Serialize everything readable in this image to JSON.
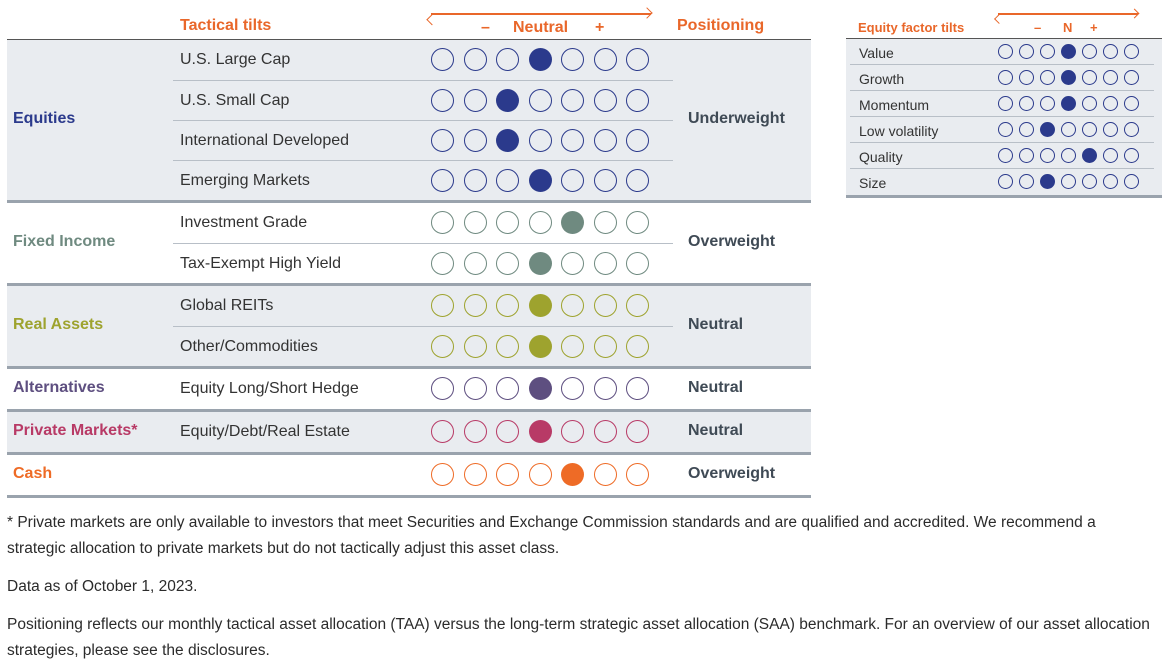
{
  "header": {
    "tactical_tilts": "Tactical tilts",
    "minus": "–",
    "neutral": "Neutral",
    "plus": "+",
    "positioning": "Positioning"
  },
  "colors": {
    "equities": "#2b3a8c",
    "fixed_income": "#6f8a80",
    "real_assets": "#9ea32e",
    "alternatives": "#5e4f80",
    "private_markets": "#b83a66",
    "cash": "#ee6b26"
  },
  "groups": [
    {
      "name": "Equities",
      "positioning": "Underweight",
      "color": "#2b3a8c",
      "rows": [
        {
          "label": "U.S. Large Cap",
          "active": 3
        },
        {
          "label": "U.S. Small Cap",
          "active": 2
        },
        {
          "label": "International Developed",
          "active": 2
        },
        {
          "label": "Emerging Markets",
          "active": 3
        }
      ]
    },
    {
      "name": "Fixed Income",
      "positioning": "Overweight",
      "color": "#6f8a80",
      "rows": [
        {
          "label": "Investment Grade",
          "active": 4
        },
        {
          "label": "Tax-Exempt High Yield",
          "active": 3
        }
      ]
    },
    {
      "name": "Real Assets",
      "positioning": "Neutral",
      "color": "#9ea32e",
      "rows": [
        {
          "label": "Global REITs",
          "active": 3
        },
        {
          "label": "Other/Commodities",
          "active": 3
        }
      ]
    },
    {
      "name": "Alternatives",
      "positioning": "Neutral",
      "color": "#5e4f80",
      "rows": [
        {
          "label": "Equity Long/Short Hedge",
          "active": 3
        }
      ]
    },
    {
      "name": "Private Markets*",
      "positioning": "Neutral",
      "color": "#b83a66",
      "rows": [
        {
          "label": "Equity/Debt/Real Estate",
          "active": 3
        }
      ]
    },
    {
      "name": "Cash",
      "positioning": "Overweight",
      "color": "#ee6b26",
      "rows": [
        {
          "label": "",
          "active": 4
        }
      ]
    }
  ],
  "factor_panel": {
    "title": "Equity factor tilts",
    "minus": "–",
    "n": "N",
    "plus": "+",
    "rows": [
      {
        "label": "Value",
        "active": 3
      },
      {
        "label": "Growth",
        "active": 3
      },
      {
        "label": "Momentum",
        "active": 3
      },
      {
        "label": "Low volatility",
        "active": 2
      },
      {
        "label": "Quality",
        "active": 4
      },
      {
        "label": "Size",
        "active": 2
      }
    ]
  },
  "notes": {
    "private_markets": "* Private markets are only available to investors that meet Securities and Exchange Commission standards and are qualified and accredited. We recommend a strategic allocation to private markets but do not tactically adjust this asset class.",
    "data_as_of": "Data as of October 1, 2023.",
    "positioning": "Positioning reflects our monthly tactical asset allocation (TAA) versus the long-term strategic asset allocation (SAA) benchmark. For an overview of our asset allocation strategies, please see the disclosures."
  }
}
